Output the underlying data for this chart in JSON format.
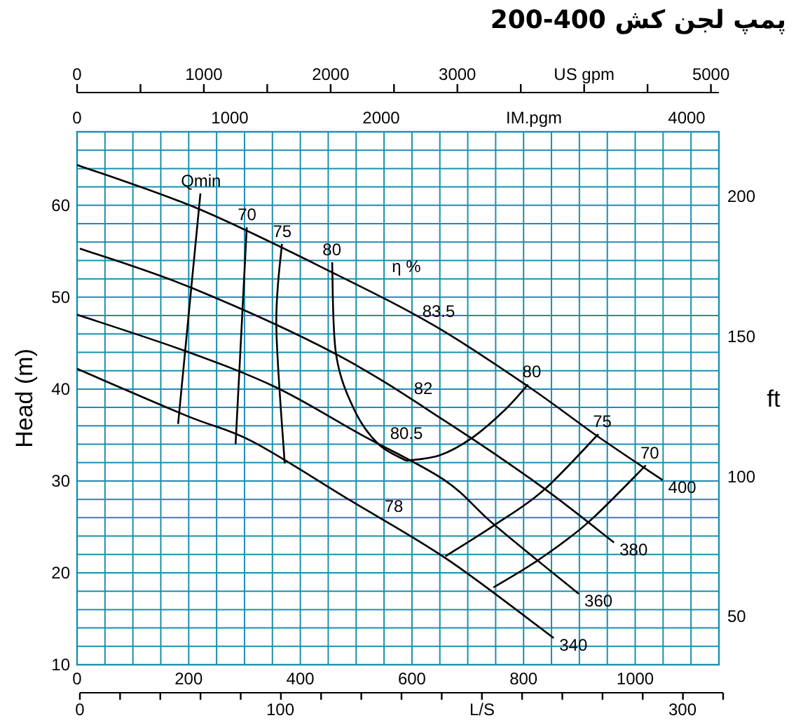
{
  "chart_data": [
    {
      "type": "line",
      "title": "پمپ لجن کش 200-400",
      "ylabel": "Head (m)",
      "y2label": "ft",
      "grid": true,
      "xlim": [
        0,
        1150
      ],
      "xticks": [
        0,
        {
          "value": 50,
          "label": null
        },
        {
          "value": 100,
          "label": null
        },
        {
          "value": 150,
          "label": null
        },
        200,
        {
          "value": 250,
          "label": null
        },
        {
          "value": 300,
          "label": null
        },
        {
          "value": 350,
          "label": null
        },
        400,
        {
          "value": 450,
          "label": null
        },
        {
          "value": 500,
          "label": null
        },
        {
          "value": 550,
          "label": null
        },
        600,
        {
          "value": 650,
          "label": null
        },
        {
          "value": 700,
          "label": null
        },
        {
          "value": 750,
          "label": null
        },
        800,
        {
          "value": 850,
          "label": null
        },
        {
          "value": 900,
          "label": null
        },
        {
          "value": 950,
          "label": null
        },
        1000,
        {
          "value": 1050,
          "label": null
        },
        {
          "value": 1100,
          "label": null
        }
      ],
      "ylim": [
        10,
        68
      ],
      "yticks": [
        10,
        {
          "value": 12,
          "label": null
        },
        {
          "value": 14,
          "label": null
        },
        {
          "value": 16,
          "label": null
        },
        {
          "value": 18,
          "label": null
        },
        20,
        {
          "value": 22,
          "label": null
        },
        {
          "value": 24,
          "label": null
        },
        {
          "value": 26,
          "label": null
        },
        {
          "value": 28,
          "label": null
        },
        30,
        {
          "value": 32,
          "label": null
        },
        {
          "value": 34,
          "label": null
        },
        {
          "value": 36,
          "label": null
        },
        {
          "value": 38,
          "label": null
        },
        40,
        {
          "value": 42,
          "label": null
        },
        {
          "value": 44,
          "label": null
        },
        {
          "value": 46,
          "label": null
        },
        {
          "value": 48,
          "label": null
        },
        50,
        {
          "value": 52,
          "label": null
        },
        {
          "value": 54,
          "label": null
        },
        {
          "value": 56,
          "label": null
        },
        {
          "value": 58,
          "label": null
        },
        60,
        {
          "value": 62,
          "label": null
        },
        {
          "value": 64,
          "label": null
        },
        {
          "value": 66,
          "label": null
        }
      ],
      "y2lim": [
        32.8,
        223.1
      ],
      "y2ticks": [
        50,
        100,
        150,
        200
      ],
      "x2lim": [
        0,
        5063
      ],
      "x2ticks": [
        0,
        1000,
        2000,
        3000,
        {
          "value": 4000,
          "label": "US gpm"
        },
        5000
      ],
      "series": [
        {
          "name": "400",
          "color": "#000000",
          "x": [
            1049,
            934,
            808,
            640,
            457,
            218,
            0
          ],
          "values": [
            30.1,
            34.8,
            40.3,
            46.9,
            52.7,
            59.6,
            64.4
          ]
        },
        {
          "name": "380",
          "color": "#000000",
          "x": [
            962,
            834,
            665,
            464,
            206,
            5
          ],
          "values": [
            23.3,
            29.3,
            36.3,
            43.8,
            51.0,
            55.3
          ]
        },
        {
          "name": "360",
          "color": "#000000",
          "x": [
            899,
            748,
            658,
            507,
            356,
            196,
            0
          ],
          "values": [
            17.7,
            25.2,
            30.1,
            35.1,
            40.2,
            44.1,
            48.1
          ]
        },
        {
          "name": "340",
          "color": "#000000",
          "x": [
            854,
            665,
            489,
            314,
            196,
            0
          ],
          "values": [
            12.9,
            21.4,
            27.9,
            34.3,
            37.1,
            42.2
          ]
        },
        {
          "name": "Qmin",
          "color": "#000000",
          "x": [
            221,
            181
          ],
          "values": [
            61.3,
            36.2
          ]
        },
        {
          "name": "70",
          "color": "#000000",
          "x": [
            304,
            284
          ],
          "values": [
            57.6,
            34.0
          ]
        },
        {
          "name": "75",
          "color": "#000000",
          "x": [
            367,
            357,
            372
          ],
          "values": [
            55.8,
            46.9,
            31.9
          ]
        },
        {
          "name": "80",
          "color": "#000000",
          "x": [
            457,
            464,
            497,
            540,
            590
          ],
          "values": [
            53.8,
            43.8,
            37.7,
            34.0,
            32.2
          ]
        },
        {
          "name": "80",
          "color": "#000000",
          "x": [
            808,
            766,
            708,
            650,
            590
          ],
          "values": [
            40.5,
            37.7,
            34.7,
            32.8,
            32.2
          ]
        },
        {
          "name": "75",
          "color": "#000000",
          "x": [
            934,
            836,
            748,
            660
          ],
          "values": [
            35.1,
            29.0,
            25.2,
            21.8
          ]
        },
        {
          "name": "70",
          "color": "#000000",
          "x": [
            1019,
            916,
            829,
            746
          ],
          "values": [
            31.7,
            25.5,
            21.5,
            18.4
          ]
        }
      ],
      "annotations": [
        "η %",
        "83.5",
        "82",
        "80.5",
        "78"
      ]
    },
    {
      "type": "other",
      "annotations": [
        "0",
        "1000",
        "2000",
        "IM.pgm",
        "4000"
      ]
    },
    {
      "type": "other",
      "annotations": [
        "0",
        "100",
        "L/S",
        "300"
      ]
    }
  ]
}
